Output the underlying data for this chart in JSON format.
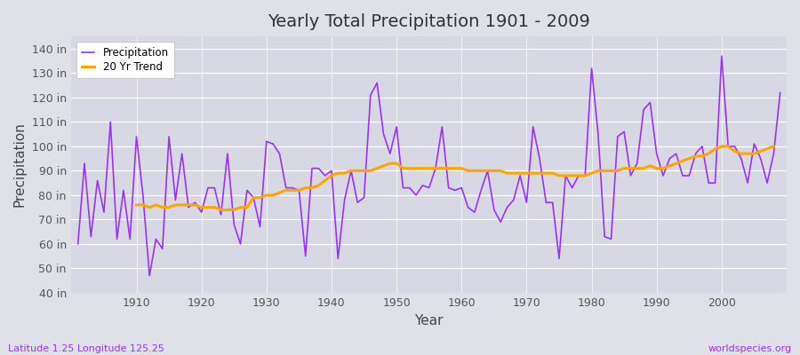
{
  "title": "Yearly Total Precipitation 1901 - 2009",
  "xlabel": "Year",
  "ylabel": "Precipitation",
  "footnote_left": "Latitude 1.25 Longitude 125.25",
  "footnote_right": "worldspecies.org",
  "legend_entries": [
    "Precipitation",
    "20 Yr Trend"
  ],
  "precip_color": "#9B30FF",
  "trend_color": "#FFA500",
  "fig_bg_color": "#E0E0E8",
  "plot_bg_color": "#D8D8E4",
  "ylim": [
    40,
    145
  ],
  "yticks": [
    40,
    50,
    60,
    70,
    80,
    90,
    100,
    110,
    120,
    130,
    140
  ],
  "ytick_labels": [
    "40 in",
    "50 in",
    "60 in",
    "70 in",
    "80 in",
    "90 in",
    "100 in",
    "110 in",
    "120 in",
    "130 in",
    "140 in"
  ],
  "xlim": [
    1900,
    2010
  ],
  "years": [
    1901,
    1902,
    1903,
    1904,
    1905,
    1906,
    1907,
    1908,
    1909,
    1910,
    1911,
    1912,
    1913,
    1914,
    1915,
    1916,
    1917,
    1918,
    1919,
    1920,
    1921,
    1922,
    1923,
    1924,
    1925,
    1926,
    1927,
    1928,
    1929,
    1930,
    1931,
    1932,
    1933,
    1934,
    1935,
    1936,
    1937,
    1938,
    1939,
    1940,
    1941,
    1942,
    1943,
    1944,
    1945,
    1946,
    1947,
    1948,
    1949,
    1950,
    1951,
    1952,
    1953,
    1954,
    1955,
    1956,
    1957,
    1958,
    1959,
    1960,
    1961,
    1962,
    1963,
    1964,
    1965,
    1966,
    1967,
    1968,
    1969,
    1970,
    1971,
    1972,
    1973,
    1974,
    1975,
    1976,
    1977,
    1978,
    1979,
    1980,
    1981,
    1982,
    1983,
    1984,
    1985,
    1986,
    1987,
    1988,
    1989,
    1990,
    1991,
    1992,
    1993,
    1994,
    1995,
    1996,
    1997,
    1998,
    1999,
    2000,
    2001,
    2002,
    2003,
    2004,
    2005,
    2006,
    2007,
    2008,
    2009
  ],
  "precip": [
    60,
    93,
    63,
    86,
    73,
    110,
    62,
    82,
    62,
    104,
    80,
    47,
    62,
    58,
    104,
    78,
    97,
    75,
    77,
    73,
    83,
    83,
    72,
    97,
    68,
    60,
    82,
    79,
    67,
    102,
    101,
    97,
    83,
    83,
    82,
    55,
    91,
    91,
    88,
    90,
    54,
    78,
    90,
    77,
    79,
    121,
    126,
    105,
    97,
    108,
    83,
    83,
    80,
    84,
    83,
    91,
    108,
    83,
    82,
    83,
    75,
    73,
    82,
    90,
    74,
    69,
    75,
    78,
    88,
    77,
    108,
    95,
    77,
    77,
    54,
    88,
    83,
    88,
    88,
    132,
    105,
    63,
    62,
    104,
    106,
    88,
    93,
    115,
    118,
    97,
    88,
    95,
    97,
    88,
    88,
    97,
    100,
    85,
    85,
    137,
    100,
    100,
    95,
    85,
    101,
    95,
    85,
    97,
    122
  ],
  "trend": [
    null,
    null,
    null,
    null,
    null,
    null,
    null,
    null,
    null,
    76,
    76,
    75,
    76,
    75,
    75,
    76,
    76,
    76,
    76,
    75,
    75,
    75,
    74,
    74,
    74,
    75,
    75,
    79,
    79,
    80,
    80,
    81,
    82,
    82,
    82,
    83,
    83,
    84,
    86,
    88,
    89,
    89,
    90,
    90,
    90,
    90,
    91,
    92,
    93,
    93,
    91,
    91,
    91,
    91,
    91,
    91,
    91,
    91,
    91,
    91,
    90,
    90,
    90,
    90,
    90,
    90,
    89,
    89,
    89,
    89,
    89,
    89,
    89,
    89,
    88,
    88,
    88,
    88,
    88,
    89,
    90,
    90,
    90,
    90,
    91,
    91,
    91,
    91,
    92,
    91,
    91,
    92,
    93,
    94,
    95,
    96,
    96,
    97,
    99,
    100,
    100,
    98,
    97,
    97,
    97,
    98,
    99,
    100,
    null
  ]
}
